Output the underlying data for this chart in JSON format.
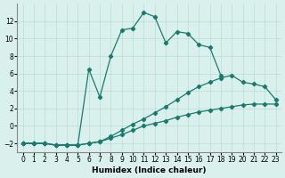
{
  "xlabel": "Humidex (Indice chaleur)",
  "line_color": "#1a7a6e",
  "background_color": "#daf0ec",
  "grid_color": "#b8ddd8",
  "ylim": [
    -3,
    14
  ],
  "xlim": [
    -0.5,
    23.5
  ],
  "yticks": [
    -2,
    0,
    2,
    4,
    6,
    8,
    10,
    12
  ],
  "xticks": [
    0,
    1,
    2,
    3,
    4,
    5,
    6,
    7,
    8,
    9,
    10,
    11,
    12,
    13,
    14,
    15,
    16,
    17,
    18,
    19,
    20,
    21,
    22,
    23
  ],
  "upper_x": [
    0,
    1,
    2,
    3,
    4,
    5,
    6,
    7,
    8,
    9,
    10,
    11,
    12,
    13,
    14,
    15,
    16,
    17,
    18
  ],
  "upper_y": [
    -2,
    -2,
    -2,
    -2.2,
    -2.2,
    -2.2,
    6.5,
    3.3,
    8.0,
    11.0,
    11.2,
    13.0,
    12.5,
    9.5,
    10.8,
    10.6,
    9.3,
    9.0,
    5.8
  ],
  "mid_x": [
    0,
    1,
    2,
    3,
    4,
    5,
    6,
    7,
    8,
    9,
    10,
    11,
    12,
    13,
    14,
    15,
    16,
    17,
    18,
    19,
    20,
    21,
    22,
    23
  ],
  "mid_y": [
    -2,
    -2,
    -2,
    -2.2,
    -2.2,
    -2.2,
    -2.0,
    -1.8,
    -1.2,
    -0.5,
    0.2,
    0.8,
    1.5,
    2.2,
    3.0,
    3.8,
    4.5,
    5.0,
    5.5,
    5.8,
    5.0,
    4.8,
    4.5,
    3.0
  ],
  "low_x": [
    0,
    1,
    2,
    3,
    4,
    5,
    6,
    7,
    8,
    9,
    10,
    11,
    12,
    13,
    14,
    15,
    16,
    17,
    18,
    19,
    20,
    21,
    22,
    23
  ],
  "low_y": [
    -2,
    -2,
    -2,
    -2.2,
    -2.2,
    -2.2,
    -2.0,
    -1.8,
    -1.4,
    -1.0,
    -0.5,
    0.0,
    0.3,
    0.6,
    1.0,
    1.3,
    1.6,
    1.8,
    2.0,
    2.2,
    2.4,
    2.5,
    2.5,
    2.5
  ]
}
